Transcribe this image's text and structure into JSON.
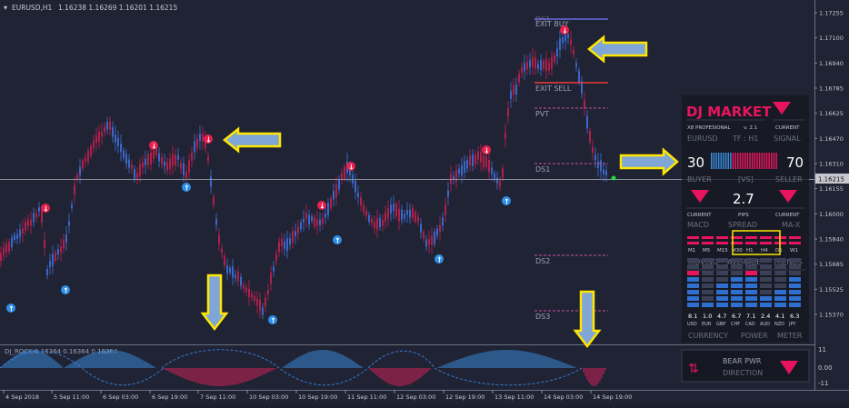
{
  "header": {
    "symbol_label": "EURUSD,H1",
    "ohlc": "1.16238 1.16269 1.16201 1.16215"
  },
  "price_axis": {
    "labels": [
      "1.17255",
      "1.17100",
      "1.16940",
      "1.16785",
      "1.16625",
      "1.16470",
      "1.16310",
      "1.16155",
      "1.16000",
      "1.15840",
      "1.15685",
      "1.15525",
      "1.15370"
    ],
    "current_price": "1.16215"
  },
  "time_axis": {
    "labels": [
      "4 Sep 2018",
      "5 Sep 11:00",
      "6 Sep 03:00",
      "6 Sep 19:00",
      "7 Sep 11:00",
      "10 Sep 03:00",
      "10 Sep 19:00",
      "11 Sep 11:00",
      "12 Sep 03:00",
      "12 Sep 19:00",
      "13 Sep 11:00",
      "14 Sep 03:00",
      "14 Sep 19:00"
    ]
  },
  "levels": {
    "exit_buy": "EXIT BUY",
    "ds1_top": "DS1",
    "exit_sell": "EXIT SELL",
    "pvt": "PVT",
    "ds1": "DS1",
    "ds2": "DS2",
    "ds3": "DS3"
  },
  "subwindow": {
    "label": "DJ_ROCK 0.16364 0.16364 0.16364",
    "axis": [
      "11",
      "0.00",
      "-11"
    ]
  },
  "panel": {
    "title": "DJ MARKET",
    "version_left": "X8 PROFESIONAL",
    "version_right": "v. 2.1",
    "current_label": "CURRENT",
    "symbol": "EURUSD",
    "timeframe": "TF : H1",
    "signal": "SIGNAL",
    "buyer_value": "30",
    "seller_value": "70",
    "buyer_label": "BUYER",
    "vs_label": "[VS]",
    "seller_label": "SELLER",
    "spread_value": "2.7",
    "pips_label": "PIPS",
    "macd_label": "MACD",
    "spread_label": "SPREAD",
    "max_label": "MA-X",
    "current_macd": "CURRENT",
    "current_max": "CURRENT",
    "trend_tfs": [
      "M1",
      "M5",
      "M15",
      "M30",
      "H1",
      "H4",
      "D1",
      "W1"
    ],
    "trend_title": [
      "MOVING",
      "AVERAGE",
      "TRENDS"
    ],
    "meter_values": [
      "8.1",
      "1.0",
      "4.7",
      "6.7",
      "7.1",
      "2.4",
      "4.1",
      "6.3"
    ],
    "meter_currencies": [
      "USD",
      "EUR",
      "GBP",
      "CHF",
      "CAD",
      "AUD",
      "NZD",
      "JPY"
    ],
    "meter_title": [
      "CURRENCY",
      "POWER",
      "METER"
    ],
    "bear_power": "BEAR PWR",
    "direction": "DIRECTION"
  },
  "colors": {
    "background": "#1f2333",
    "bull": "#3f6fd8",
    "bear": "#d8205a",
    "accent_pink": "#e8155e",
    "arrow_fill": "#7fa6d6",
    "arrow_border": "#ffe600"
  }
}
